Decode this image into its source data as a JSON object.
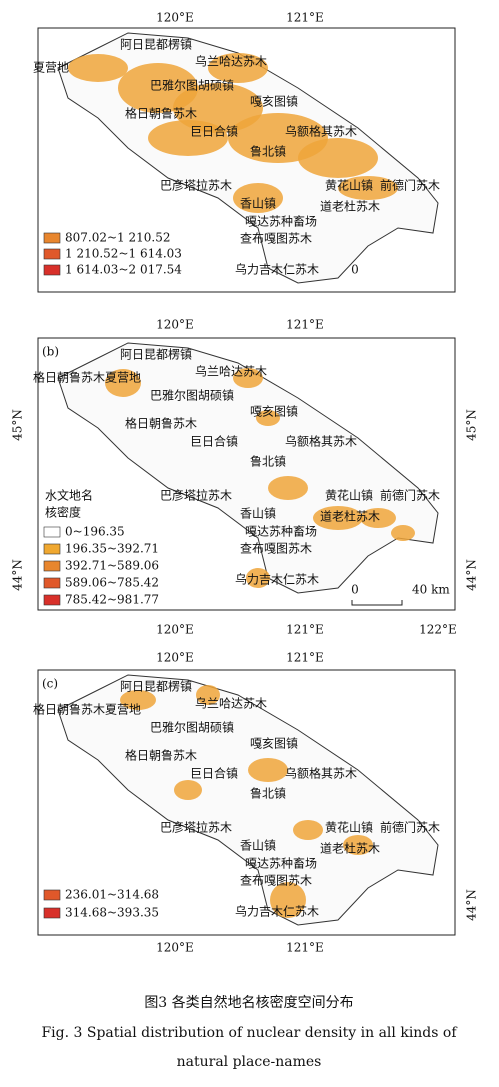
{
  "panels": [
    {
      "top_lons": [
        "120°E",
        "121°E"
      ],
      "bottom_lons": [],
      "left_lats": [],
      "right_lats": [],
      "places": [
        "阿日昆都楞镇",
        "夏营地",
        "乌兰哈达苏木",
        "巴雅尔图胡硕镇",
        "嘎亥图镇",
        "格日朝鲁苏木",
        "巨日合镇",
        "乌额格其苏木",
        "鲁北镇",
        "黄花山镇",
        "前德门苏木",
        "巴彦塔拉苏木",
        "香山镇",
        "道老杜苏木",
        "嘎达苏种畜场",
        "查布嘎图苏木",
        "乌力吉木仁苏木"
      ],
      "legend": {
        "title": [],
        "items": [
          {
            "label": "807.02~1 210.52",
            "color": "#e8862e"
          },
          {
            "label": "1 210.52~1 614.03",
            "color": "#e0582a"
          },
          {
            "label": "1 614.03~2 017.54",
            "color": "#d8302a"
          }
        ]
      },
      "scale": [
        "0"
      ]
    },
    {
      "label": "(b)",
      "top_lons": [
        "120°E",
        "121°E"
      ],
      "bottom_lons": [
        "120°E",
        "121°E",
        "122°E"
      ],
      "left_lats": [
        "45°N",
        "44°N"
      ],
      "right_lats": [
        "45°N",
        "44°N"
      ],
      "places": [
        "阿日昆都楞镇",
        "格日朝鲁苏木夏营地",
        "乌兰哈达苏木",
        "巴雅尔图胡硕镇",
        "嘎亥图镇",
        "格日朝鲁苏木",
        "巨日合镇",
        "乌额格其苏木",
        "鲁北镇",
        "黄花山镇",
        "前德门苏木",
        "巴彦塔拉苏木",
        "香山镇",
        "道老杜苏木",
        "嘎达苏种畜场",
        "查布嘎图苏木",
        "乌力吉木仁苏木"
      ],
      "legend": {
        "title": [
          "水文地名",
          "核密度"
        ],
        "items": [
          {
            "label": "0~196.35",
            "color": "#ffffff"
          },
          {
            "label": "196.35~392.71",
            "color": "#f0a830"
          },
          {
            "label": "392.71~589.06",
            "color": "#e8862e"
          },
          {
            "label": "589.06~785.42",
            "color": "#e0582a"
          },
          {
            "label": "785.42~981.77",
            "color": "#d8302a"
          }
        ]
      },
      "scale": [
        "0",
        "40 km"
      ]
    },
    {
      "label": "(c)",
      "top_lons": [
        "120°E",
        "121°E"
      ],
      "bottom_lons": [
        "120°E",
        "121°E"
      ],
      "left_lats": [],
      "right_lats": [
        "44°N"
      ],
      "places": [
        "阿日昆都楞镇",
        "格日朝鲁苏木夏营地",
        "乌兰哈达苏木",
        "巴雅尔图胡硕镇",
        "嘎亥图镇",
        "格日朝鲁苏木",
        "巨日合镇",
        "乌额格其苏木",
        "鲁北镇",
        "黄花山镇",
        "前德门苏木",
        "巴彦塔拉苏木",
        "香山镇",
        "道老杜苏木",
        "嘎达苏种畜场",
        "查布嘎图苏木",
        "乌力吉木仁苏木"
      ],
      "legend": {
        "title": [],
        "items": [
          {
            "label": "236.01~314.68",
            "color": "#e0582a"
          },
          {
            "label": "314.68~393.35",
            "color": "#d8302a"
          }
        ]
      },
      "scale": []
    }
  ],
  "caption": {
    "zh": "图3  各类自然地名核密度空间分布",
    "en": [
      "Fig. 3  Spatial distribution of nuclear density in all kinds of",
      "natural place-names"
    ]
  }
}
